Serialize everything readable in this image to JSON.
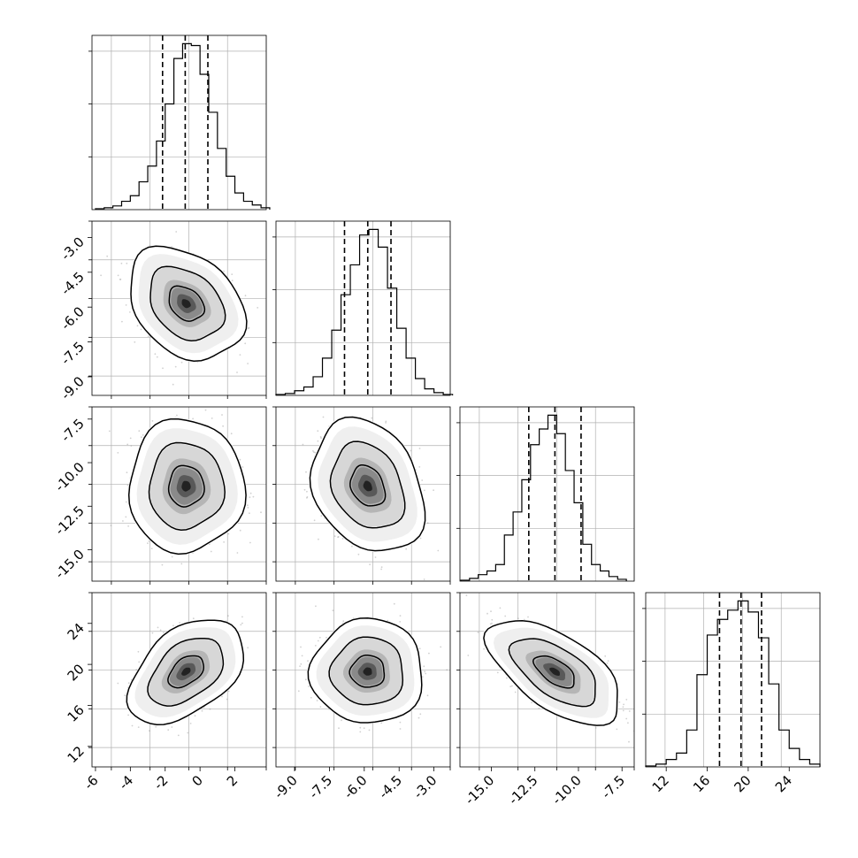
{
  "chart_data": [
    {
      "type": "histogram",
      "panel": "marginal-param-1",
      "bin_edges": [
        -6.0,
        -5.5,
        -5.0,
        -4.5,
        -4.0,
        -3.5,
        -3.0,
        -2.5,
        -2.0,
        -1.5,
        -1.0,
        -0.5,
        0.0,
        0.5,
        1.0,
        1.5,
        2.0,
        2.5,
        3.0,
        3.5,
        4.0
      ],
      "counts": [
        1,
        2,
        4,
        9,
        15,
        30,
        47,
        74,
        114,
        163,
        179,
        177,
        146,
        105,
        66,
        36,
        18,
        9,
        5,
        2
      ],
      "quantiles": [
        -2.15,
        -0.85,
        0.45
      ],
      "xlim": [
        -6.2,
        3.8
      ]
    },
    {
      "type": "histogram",
      "panel": "marginal-param-2",
      "bin_edges": [
        -9.8,
        -9.4,
        -9.0,
        -8.6,
        -8.2,
        -7.8,
        -7.4,
        -7.0,
        -6.6,
        -6.2,
        -5.8,
        -5.4,
        -5.0,
        -4.6,
        -4.2,
        -3.8,
        -3.4,
        -3.0,
        -2.6,
        -2.2
      ],
      "counts": [
        1,
        2,
        5,
        9,
        20,
        40,
        70,
        108,
        140,
        172,
        178,
        159,
        115,
        72,
        40,
        18,
        7,
        3,
        1
      ],
      "quantiles": [
        -6.85,
        -5.85,
        -4.85
      ],
      "xlim": [
        -9.8,
        -2.3
      ],
      "tick_labels": [
        "-9.0",
        "-7.5",
        "-6.0",
        "-4.5",
        "-3.0"
      ]
    },
    {
      "type": "histogram",
      "panel": "marginal-param-3",
      "bin_edges": [
        -16.75,
        -16.25,
        -15.75,
        -15.25,
        -14.75,
        -14.25,
        -13.75,
        -13.25,
        -12.75,
        -12.25,
        -11.75,
        -11.25,
        -10.75,
        -10.25,
        -9.75,
        -9.25,
        -8.75,
        -8.25,
        -7.75,
        -7.25
      ],
      "counts": [
        1,
        3,
        7,
        11,
        18,
        50,
        75,
        110,
        148,
        165,
        180,
        160,
        120,
        85,
        40,
        18,
        11,
        5,
        2
      ],
      "quantiles": [
        -12.85,
        -11.35,
        -9.85
      ],
      "xlim": [
        -16.8,
        -6.8
      ],
      "tick_labels": [
        "-15.0",
        "-12.5",
        "-10.0",
        "-7.5"
      ]
    },
    {
      "type": "histogram",
      "panel": "marginal-param-4",
      "bin_edges": [
        10.0,
        11.0,
        12.0,
        13.0,
        14.0,
        15.0,
        16.0,
        17.0,
        18.0,
        19.0,
        20.0,
        21.0,
        22.0,
        23.0,
        24.0,
        25.0,
        26.0,
        27.0
      ],
      "counts": [
        1,
        3,
        8,
        15,
        40,
        100,
        143,
        160,
        170,
        180,
        168,
        140,
        90,
        40,
        20,
        8,
        3
      ],
      "quantiles": [
        17.2,
        19.3,
        21.3
      ],
      "xlim": [
        10.0,
        27.0
      ],
      "tick_labels": [
        "12",
        "16",
        "20",
        "24"
      ]
    },
    {
      "type": "2d-density",
      "panel": "param-1-vs-param-2",
      "x_mean": -0.8,
      "y_mean": -5.85,
      "x_sd": 1.3,
      "y_sd": 0.95,
      "correlation": -0.3,
      "levels": [
        0.39,
        0.86,
        0.99
      ],
      "xlim": [
        -6.2,
        3.8
      ],
      "ylim": [
        -9.8,
        -2.3
      ],
      "y_tick_labels": [
        "-3.0",
        "-4.5",
        "-6.0",
        "-7.5",
        "-9.0"
      ]
    },
    {
      "type": "2d-density",
      "panel": "param-1-vs-param-3",
      "x_mean": -0.8,
      "y_mean": -11.35,
      "x_sd": 1.3,
      "y_sd": 1.5,
      "correlation": 0.0,
      "levels": [
        0.39,
        0.86,
        0.99
      ],
      "xlim": [
        -6.2,
        3.8
      ],
      "ylim": [
        -16.8,
        -6.8
      ],
      "y_tick_labels": [
        "-7.5",
        "-10.0",
        "-12.5",
        "-15.0"
      ]
    },
    {
      "type": "2d-density",
      "panel": "param-2-vs-param-3",
      "x_mean": -5.85,
      "y_mean": -11.35,
      "x_sd": 0.95,
      "y_sd": 1.5,
      "correlation": -0.25,
      "levels": [
        0.39,
        0.86,
        0.99
      ],
      "xlim": [
        -9.8,
        -2.3
      ],
      "ylim": [
        -16.8,
        -6.8
      ]
    },
    {
      "type": "2d-density",
      "panel": "param-1-vs-param-4",
      "x_mean": -0.8,
      "y_mean": 19.3,
      "x_sd": 1.3,
      "y_sd": 2.0,
      "correlation": 0.45,
      "levels": [
        0.39,
        0.86,
        0.99
      ],
      "xlim": [
        -6.2,
        3.8
      ],
      "ylim": [
        10.0,
        27.0
      ],
      "y_tick_labels": [
        "24",
        "20",
        "16",
        "12"
      ],
      "x_tick_labels": [
        "-6",
        "-4",
        "-2",
        "0",
        "2"
      ]
    },
    {
      "type": "2d-density",
      "panel": "param-2-vs-param-4",
      "x_mean": -5.85,
      "y_mean": 19.3,
      "x_sd": 0.95,
      "y_sd": 2.0,
      "correlation": 0.0,
      "levels": [
        0.39,
        0.86,
        0.99
      ],
      "xlim": [
        -9.8,
        -2.3
      ],
      "ylim": [
        10.0,
        27.0
      ]
    },
    {
      "type": "2d-density",
      "panel": "param-3-vs-param-4",
      "x_mean": -11.35,
      "y_mean": 19.3,
      "x_sd": 1.5,
      "y_sd": 2.0,
      "correlation": -0.6,
      "levels": [
        0.39,
        0.86,
        0.99
      ],
      "xlim": [
        -16.8,
        -6.8
      ],
      "ylim": [
        10.0,
        27.0
      ]
    }
  ]
}
